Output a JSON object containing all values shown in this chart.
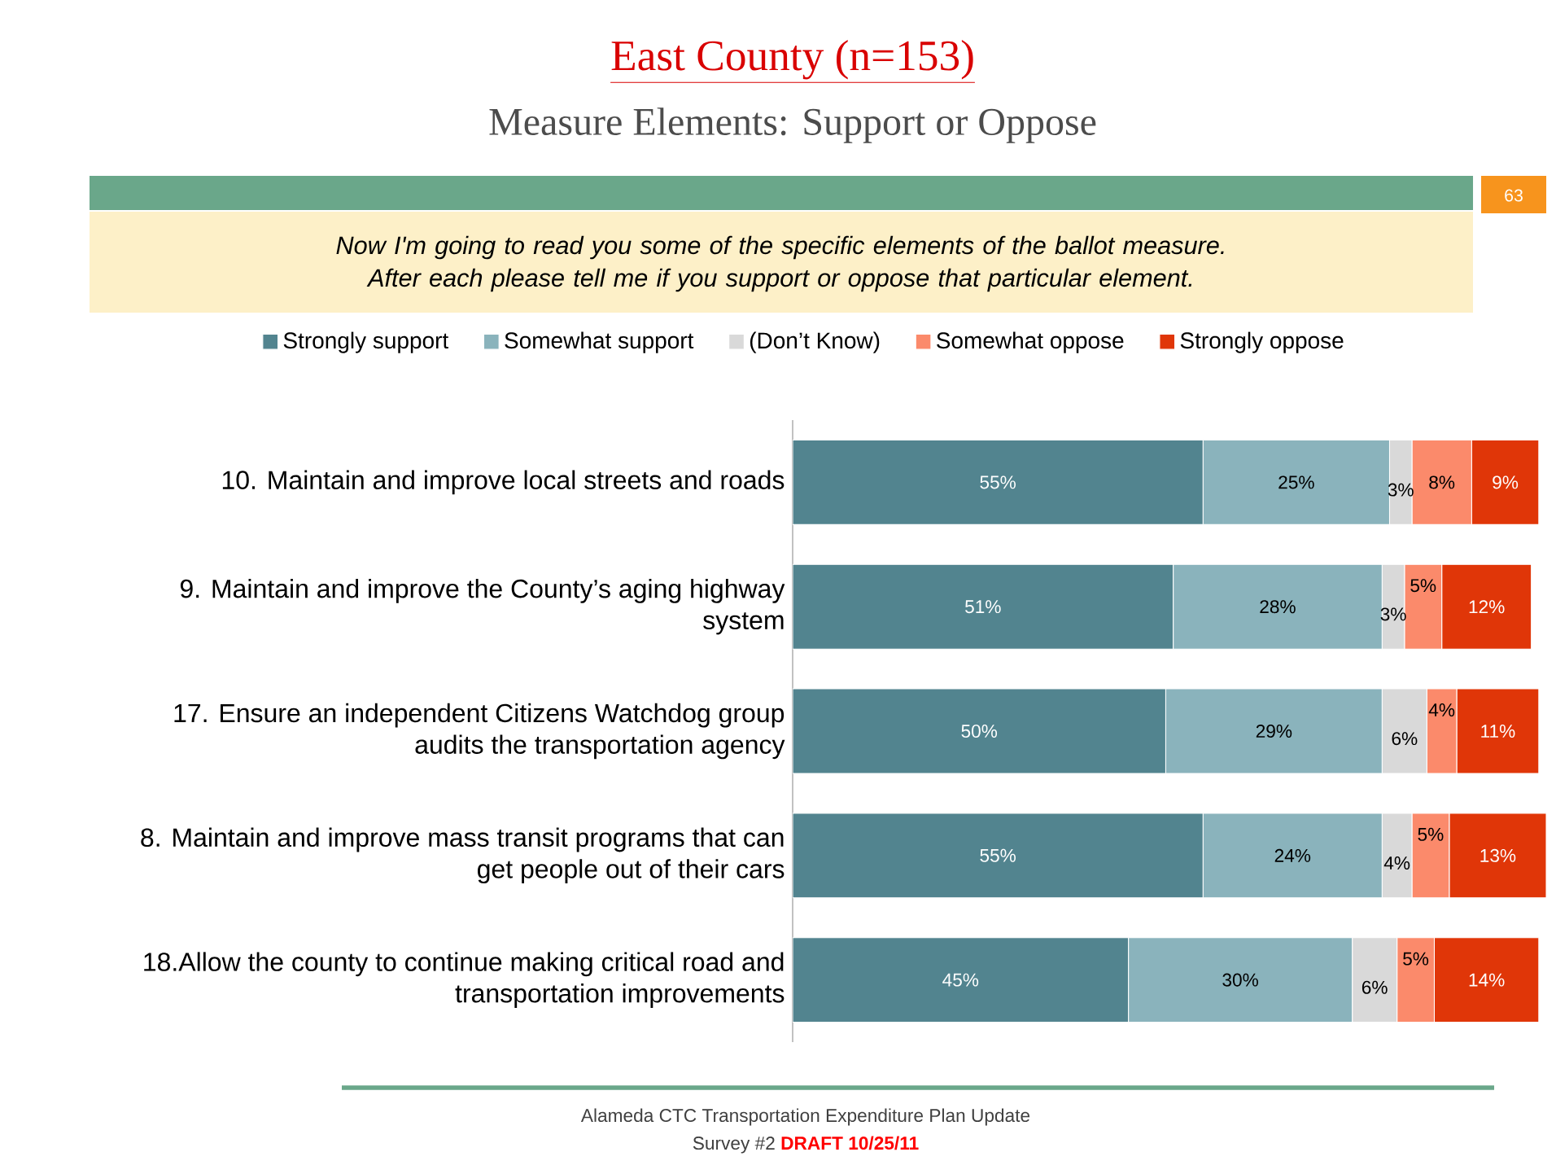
{
  "chart_data": {
    "type": "bar",
    "orientation": "horizontal",
    "stacked": true,
    "title": "East County (n=153)",
    "subtitle": "Measure Elements: Support or Oppose",
    "categories": [
      "10. Maintain and improve local streets and roads",
      "9. Maintain and improve the County’s aging highway system",
      "17. Ensure an independent Citizens Watchdog group audits the transportation agency",
      "8. Maintain and improve mass transit programs that can get people out of their cars",
      "18.Allow the county to continue making critical road and transportation improvements"
    ],
    "series": [
      {
        "name": "Strongly support",
        "color": "#52848f",
        "values": [
          55,
          51,
          50,
          55,
          45
        ],
        "value_labels": [
          "55%",
          "51%",
          "50%",
          "55%",
          "45%"
        ]
      },
      {
        "name": "Somewhat support",
        "color": "#8ab3bc",
        "values": [
          25,
          28,
          29,
          24,
          30
        ],
        "value_labels": [
          "25%",
          "28%",
          "29%",
          "24%",
          "30%"
        ]
      },
      {
        "name": "(Don’t Know)",
        "color": "#d9d9d9",
        "values": [
          3,
          3,
          6,
          4,
          6
        ],
        "value_labels": [
          "3%",
          "3%",
          "6%",
          "4%",
          "6%"
        ]
      },
      {
        "name": "Somewhat oppose",
        "color": "#fb8a6b",
        "values": [
          8,
          5,
          4,
          5,
          5
        ],
        "value_labels": [
          "8%",
          "5%",
          "4%",
          "5%",
          "5%"
        ]
      },
      {
        "name": "Strongly oppose",
        "color": "#e03608",
        "values": [
          9,
          12,
          11,
          13,
          14
        ],
        "value_labels": [
          "9%",
          "12%",
          "11%",
          "13%",
          "14%"
        ]
      }
    ],
    "legend": "top",
    "annotations": [
      "Now I'm going to read you some of the specific elements of the ballot measure. After each please tell me if you support or oppose that particular element.",
      "63",
      "Alameda CTC Transportation Expenditure Plan Update",
      "Survey #2",
      "DRAFT 10/25/11"
    ]
  }
}
